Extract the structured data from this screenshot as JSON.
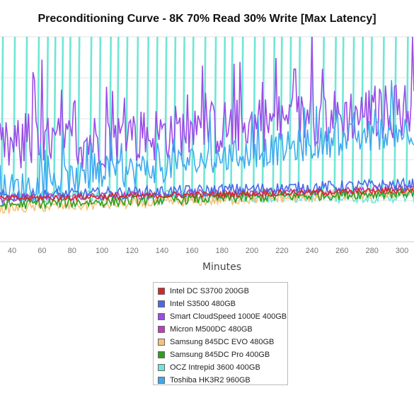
{
  "chart_data": {
    "type": "line",
    "title": "Preconditioning Curve - 8K 70% Read 30% Write [Max Latency]",
    "xlabel": "Minutes",
    "ylabel": "",
    "x_ticks": [
      40,
      60,
      80,
      100,
      120,
      140,
      160,
      180,
      200,
      220,
      240,
      260,
      280,
      300
    ],
    "xlim": [
      32,
      308
    ],
    "ylim": [
      0,
      100
    ],
    "grid": true,
    "legend_position": "bottom",
    "series": [
      {
        "name": "Intel DC S3700 200GB",
        "color": "#d62728",
        "style": "flat",
        "base": 21,
        "noise": 1.5,
        "trend": 4
      },
      {
        "name": "Intel S3500 480GB",
        "color": "#4a69e8",
        "style": "flat",
        "base": 22,
        "noise": 3,
        "trend": 6
      },
      {
        "name": "Smart CloudSpeed 1000E 400GB",
        "color": "#9b4be8",
        "style": "noisy",
        "base": 45,
        "noise": 14,
        "trend": 20
      },
      {
        "name": "Micron M500DC 480GB",
        "color": "#c03cc0",
        "style": "flat",
        "base": 21,
        "noise": 2,
        "trend": 5
      },
      {
        "name": "Samsung 845DC EVO 480GB",
        "color": "#f6c27a",
        "style": "flat",
        "base": 16,
        "noise": 2.5,
        "trend": 8
      },
      {
        "name": "Samsung 845DC Pro 400GB",
        "color": "#2e9e1f",
        "style": "flat",
        "base": 18,
        "noise": 2.5,
        "trend": 6
      },
      {
        "name": "OCZ Intrepid 3600 400GB",
        "color": "#6fe6d6",
        "style": "spikes",
        "base": 22,
        "noise": 3,
        "trend": 4
      },
      {
        "name": "Toshiba HK3R2 960GB",
        "color": "#3fa9f0",
        "style": "noisy",
        "base": 25,
        "noise": 8,
        "trend": 30
      }
    ]
  }
}
